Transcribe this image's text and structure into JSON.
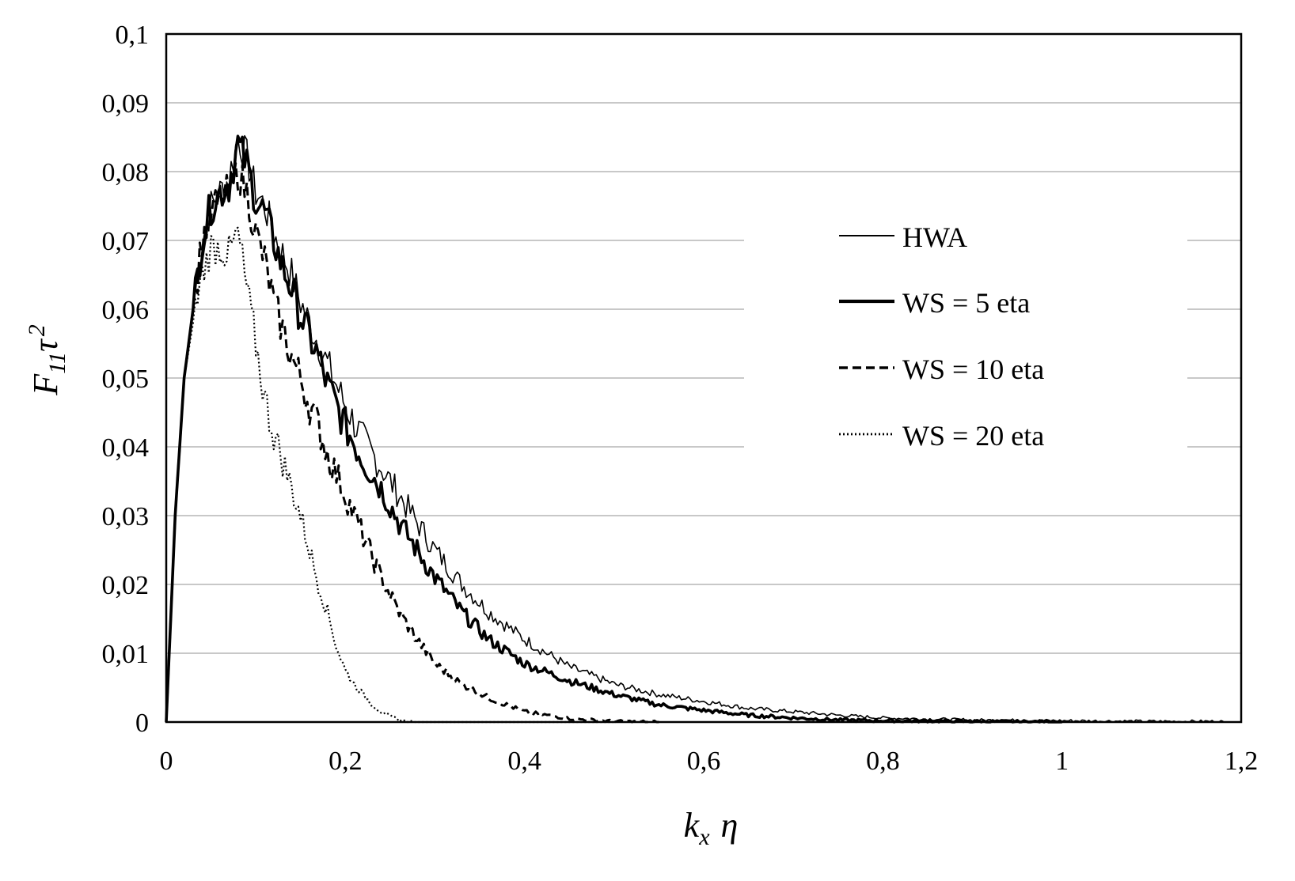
{
  "chart_data": {
    "type": "line",
    "title": "",
    "xlabel": {
      "main": "k",
      "sub": "x",
      "tail": "η"
    },
    "ylabel": {
      "main": "F",
      "sub": "11",
      "mid": "τ",
      "sup": "2"
    },
    "xlim": [
      0,
      1.2
    ],
    "ylim": [
      0,
      0.1
    ],
    "xticks": [
      0,
      0.2,
      0.4,
      0.6,
      0.8,
      1,
      1.2
    ],
    "xtick_labels": [
      "0",
      "0,2",
      "0,4",
      "0,6",
      "0,8",
      "1",
      "1,2"
    ],
    "yticks": [
      0,
      0.01,
      0.02,
      0.03,
      0.04,
      0.05,
      0.06,
      0.07,
      0.08,
      0.09,
      0.1
    ],
    "ytick_labels": [
      "0",
      "0,01",
      "0,02",
      "0,03",
      "0,04",
      "0,05",
      "0,06",
      "0,07",
      "0,08",
      "0,09",
      "0,1"
    ],
    "grid": "horizontal",
    "legend": "center-right",
    "series": [
      {
        "name": "HWA",
        "style": "thin-solid",
        "x": [
          0,
          0.01,
          0.02,
          0.03,
          0.04,
          0.05,
          0.06,
          0.07,
          0.08,
          0.09,
          0.1,
          0.11,
          0.12,
          0.13,
          0.14,
          0.15,
          0.16,
          0.17,
          0.18,
          0.19,
          0.2,
          0.22,
          0.24,
          0.26,
          0.28,
          0.3,
          0.33,
          0.36,
          0.4,
          0.45,
          0.5,
          0.55,
          0.6,
          0.65,
          0.7,
          0.75,
          0.8,
          0.9,
          1.0,
          1.1,
          1.18
        ],
        "y": [
          0,
          0.03,
          0.05,
          0.06,
          0.07,
          0.075,
          0.077,
          0.079,
          0.085,
          0.082,
          0.077,
          0.075,
          0.071,
          0.068,
          0.065,
          0.061,
          0.058,
          0.055,
          0.052,
          0.049,
          0.046,
          0.041,
          0.037,
          0.033,
          0.029,
          0.025,
          0.02,
          0.016,
          0.012,
          0.008,
          0.0055,
          0.004,
          0.003,
          0.002,
          0.0015,
          0.001,
          0.0006,
          0.0003,
          0.0002,
          0.0001,
          0.0001
        ]
      },
      {
        "name": "WS = 5 eta",
        "style": "thick-solid",
        "x": [
          0,
          0.01,
          0.02,
          0.03,
          0.04,
          0.05,
          0.06,
          0.07,
          0.08,
          0.09,
          0.1,
          0.11,
          0.12,
          0.13,
          0.14,
          0.15,
          0.16,
          0.17,
          0.18,
          0.19,
          0.2,
          0.22,
          0.24,
          0.26,
          0.28,
          0.3,
          0.33,
          0.36,
          0.4,
          0.45,
          0.5,
          0.55,
          0.6,
          0.65,
          0.7,
          0.75,
          0.8,
          0.9,
          1.0
        ],
        "y": [
          0,
          0.03,
          0.05,
          0.06,
          0.07,
          0.075,
          0.077,
          0.078,
          0.084,
          0.081,
          0.076,
          0.074,
          0.07,
          0.066,
          0.063,
          0.059,
          0.056,
          0.053,
          0.049,
          0.046,
          0.043,
          0.038,
          0.034,
          0.029,
          0.025,
          0.021,
          0.016,
          0.012,
          0.0085,
          0.006,
          0.004,
          0.0025,
          0.0017,
          0.001,
          0.0006,
          0.0003,
          0.0002,
          0.0001,
          0
        ]
      },
      {
        "name": "WS = 10 eta",
        "style": "dashed",
        "x": [
          0,
          0.01,
          0.02,
          0.03,
          0.04,
          0.05,
          0.06,
          0.07,
          0.08,
          0.09,
          0.1,
          0.11,
          0.12,
          0.13,
          0.14,
          0.15,
          0.16,
          0.17,
          0.18,
          0.19,
          0.2,
          0.22,
          0.24,
          0.26,
          0.28,
          0.3,
          0.33,
          0.36,
          0.4,
          0.45,
          0.5,
          0.55
        ],
        "y": [
          0,
          0.03,
          0.05,
          0.06,
          0.07,
          0.074,
          0.076,
          0.077,
          0.08,
          0.077,
          0.071,
          0.067,
          0.061,
          0.057,
          0.053,
          0.05,
          0.046,
          0.043,
          0.039,
          0.036,
          0.033,
          0.027,
          0.021,
          0.016,
          0.012,
          0.0085,
          0.0055,
          0.0035,
          0.0015,
          0.0005,
          0.0001,
          0
        ]
      },
      {
        "name": "WS = 20 eta",
        "style": "dotted",
        "x": [
          0,
          0.01,
          0.02,
          0.03,
          0.04,
          0.05,
          0.06,
          0.07,
          0.08,
          0.09,
          0.1,
          0.11,
          0.12,
          0.13,
          0.14,
          0.15,
          0.16,
          0.17,
          0.18,
          0.19,
          0.2,
          0.21,
          0.22,
          0.23,
          0.24,
          0.25,
          0.26,
          0.27,
          0.28,
          0.3,
          0.35,
          0.4,
          0.5
        ],
        "y": [
          0,
          0.03,
          0.05,
          0.058,
          0.065,
          0.069,
          0.069,
          0.068,
          0.071,
          0.063,
          0.055,
          0.047,
          0.042,
          0.038,
          0.034,
          0.03,
          0.025,
          0.02,
          0.016,
          0.011,
          0.0075,
          0.0055,
          0.004,
          0.0025,
          0.0015,
          0.0008,
          0.0003,
          0.0001,
          0,
          0,
          0,
          0,
          0
        ]
      }
    ]
  }
}
